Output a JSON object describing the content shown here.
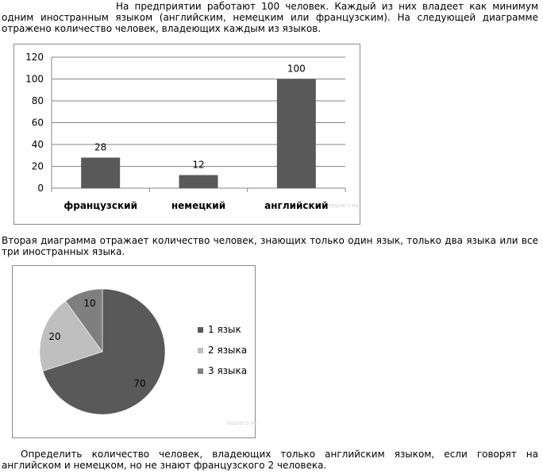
{
  "intro_text": "На предприятии работают 100 человек. Каждый из них владеет как минимум одним иностранным языком (английским, немецким или французским). На следующей диаграмме отражено количество человек, владеющих каждым из языков.",
  "middle_text": "Вторая диаграмма отражает количество человек, знающих только один язык, только два языка или все три иностранных языка.",
  "question_text": "Определить количество человек, владеющих только английским языком, если говорят на английском и немецком, но не знают французского 2 человека.",
  "watermark": "РЕШУЕГЭ.РФ",
  "colors": {
    "bar": "#595959",
    "one_lang": "#595959",
    "two_lang": "#bfbfbf",
    "three_lang": "#7f7f7f"
  },
  "chart_data": [
    {
      "type": "bar",
      "categories": [
        "французский",
        "немецкий",
        "английский"
      ],
      "values": [
        28,
        12,
        100
      ],
      "data_labels": [
        "28",
        "12",
        "100"
      ],
      "y_ticks": [
        "0",
        "20",
        "40",
        "60",
        "80",
        "100",
        "120"
      ],
      "ylim": [
        0,
        120
      ],
      "grid": true,
      "title": "",
      "xlabel": "",
      "ylabel": ""
    },
    {
      "type": "pie",
      "labels": [
        "1 язык",
        "2 языка",
        "3 языка"
      ],
      "values": [
        70,
        20,
        10
      ],
      "data_labels": [
        "70",
        "20",
        "10"
      ],
      "legend_position": "right",
      "title": ""
    }
  ]
}
